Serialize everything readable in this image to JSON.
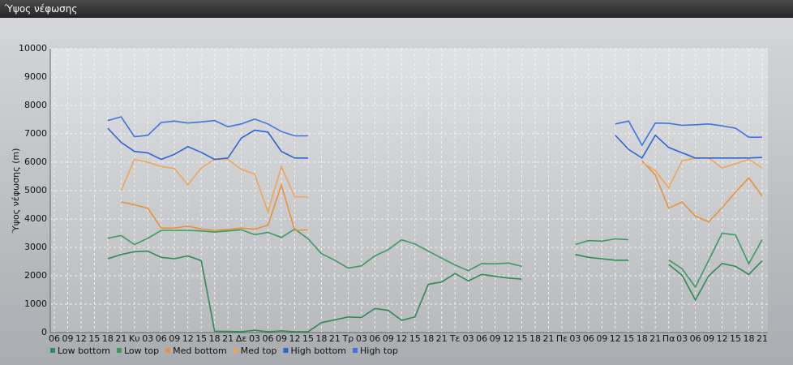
{
  "chart_data": {
    "type": "line",
    "title": "Ύψος νέφωσης",
    "y_label": "Ύψος νέφωσης (m)",
    "categories": [
      "06",
      "09",
      "12",
      "15",
      "18",
      "21",
      "Κυ",
      "03",
      "06",
      "09",
      "12",
      "15",
      "18",
      "21",
      "Δε",
      "03",
      "06",
      "09",
      "12",
      "15",
      "18",
      "21",
      "Τρ",
      "03",
      "06",
      "09",
      "12",
      "15",
      "18",
      "21",
      "Τε",
      "03",
      "06",
      "09",
      "12",
      "15",
      "18",
      "21",
      "Πε",
      "03",
      "06",
      "09",
      "12",
      "15",
      "18",
      "21",
      "Πα",
      "03",
      "06",
      "09",
      "12",
      "15",
      "18",
      "21"
    ],
    "ylim": [
      0,
      10000
    ],
    "yticks": [
      0,
      1000,
      2000,
      3000,
      4000,
      5000,
      6000,
      7000,
      8000,
      9000,
      10000
    ],
    "grid": true,
    "series": [
      {
        "name": "Low bottom",
        "color": "#2e8b57",
        "values": [
          null,
          null,
          null,
          null,
          2600,
          2750,
          2850,
          2870,
          2650,
          2600,
          2700,
          2530,
          50,
          40,
          30,
          80,
          30,
          60,
          30,
          30,
          350,
          450,
          550,
          530,
          850,
          780,
          430,
          550,
          1700,
          1780,
          2080,
          1820,
          2050,
          1980,
          1920,
          1880,
          null,
          null,
          null,
          2750,
          2650,
          2600,
          2550,
          2550,
          null,
          null,
          2400,
          2020,
          1150,
          2000,
          2430,
          2330,
          2050,
          2530
        ]
      },
      {
        "name": "Low top",
        "color": "#3a9a62",
        "values": [
          null,
          null,
          null,
          null,
          3320,
          3420,
          3100,
          3320,
          3600,
          3600,
          3600,
          3580,
          3540,
          3580,
          3620,
          3450,
          3530,
          3350,
          3650,
          3300,
          2780,
          2550,
          2270,
          2350,
          2700,
          2920,
          3270,
          3120,
          2870,
          2620,
          2380,
          2180,
          2430,
          2420,
          2450,
          2330,
          null,
          null,
          null,
          3100,
          3240,
          3220,
          3300,
          3270,
          null,
          null,
          2560,
          2250,
          1600,
          2550,
          3500,
          3440,
          2420,
          3280
        ]
      },
      {
        "name": "Med bottom",
        "color": "#e8923a",
        "values": [
          null,
          null,
          null,
          null,
          null,
          4600,
          4500,
          4380,
          3680,
          3680,
          3750,
          3650,
          3600,
          3630,
          3680,
          3640,
          3780,
          5200,
          3600,
          3620,
          null,
          null,
          null,
          null,
          null,
          null,
          null,
          null,
          null,
          null,
          null,
          null,
          null,
          null,
          null,
          null,
          null,
          null,
          null,
          null,
          null,
          null,
          null,
          null,
          6050,
          5550,
          4380,
          4600,
          4100,
          3900,
          4400,
          4950,
          5450,
          4800
        ]
      },
      {
        "name": "Med top",
        "color": "#f0a458",
        "values": [
          null,
          null,
          null,
          null,
          null,
          5000,
          6100,
          6000,
          5850,
          5780,
          5200,
          5800,
          6100,
          6100,
          5750,
          5580,
          4250,
          5850,
          4780,
          4780,
          null,
          null,
          null,
          null,
          null,
          null,
          null,
          null,
          null,
          null,
          null,
          null,
          null,
          null,
          null,
          null,
          null,
          null,
          null,
          null,
          null,
          null,
          null,
          null,
          6000,
          5700,
          5100,
          6050,
          6150,
          6150,
          5800,
          5950,
          6100,
          5800
        ]
      },
      {
        "name": "High bottom",
        "color": "#2f63d6",
        "values": [
          null,
          null,
          null,
          null,
          7200,
          6700,
          6380,
          6330,
          6100,
          6280,
          6550,
          6350,
          6100,
          6150,
          6850,
          7130,
          7060,
          6380,
          6150,
          6150,
          null,
          null,
          null,
          null,
          null,
          null,
          null,
          null,
          null,
          null,
          null,
          null,
          null,
          null,
          null,
          null,
          null,
          null,
          null,
          null,
          null,
          null,
          6950,
          6450,
          6150,
          6950,
          6520,
          6330,
          6150,
          6150,
          6150,
          6150,
          6150,
          6170
        ]
      },
      {
        "name": "High top",
        "color": "#3f74e0",
        "values": [
          null,
          null,
          null,
          null,
          7470,
          7600,
          6900,
          6950,
          7400,
          7450,
          7380,
          7420,
          7470,
          7250,
          7350,
          7520,
          7350,
          7080,
          6930,
          6930,
          null,
          null,
          null,
          null,
          null,
          null,
          null,
          null,
          null,
          null,
          null,
          null,
          null,
          null,
          null,
          null,
          null,
          null,
          null,
          null,
          null,
          null,
          7350,
          7450,
          6600,
          7380,
          7370,
          7300,
          7320,
          7350,
          7280,
          7200,
          6880,
          6880
        ]
      }
    ]
  }
}
